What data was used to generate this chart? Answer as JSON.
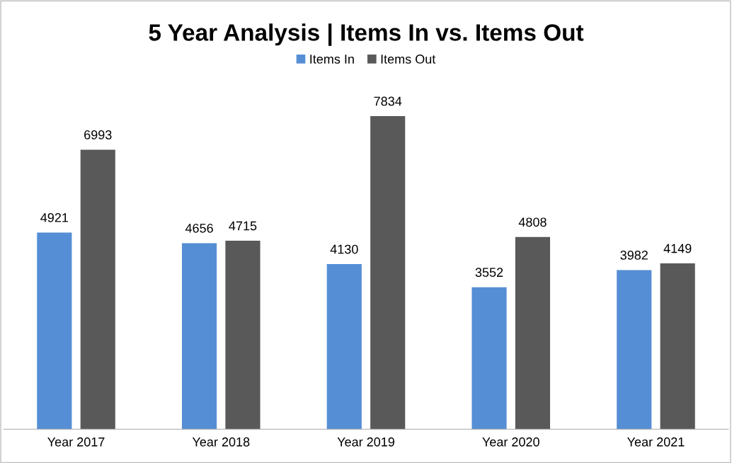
{
  "chart_data": {
    "type": "bar",
    "title": "5 Year Analysis | Items In vs. Items Out",
    "categories": [
      "Year 2017",
      "Year 2018",
      "Year 2019",
      "Year 2020",
      "Year 2021"
    ],
    "series": [
      {
        "name": "Items In",
        "color": "#558ed5",
        "values": [
          4921,
          4656,
          4130,
          3552,
          3982
        ]
      },
      {
        "name": "Items Out",
        "color": "#595959",
        "values": [
          6993,
          4715,
          7834,
          4808,
          4149
        ]
      }
    ],
    "data_labels": true,
    "legend": "top",
    "tick_labels": "x"
  }
}
